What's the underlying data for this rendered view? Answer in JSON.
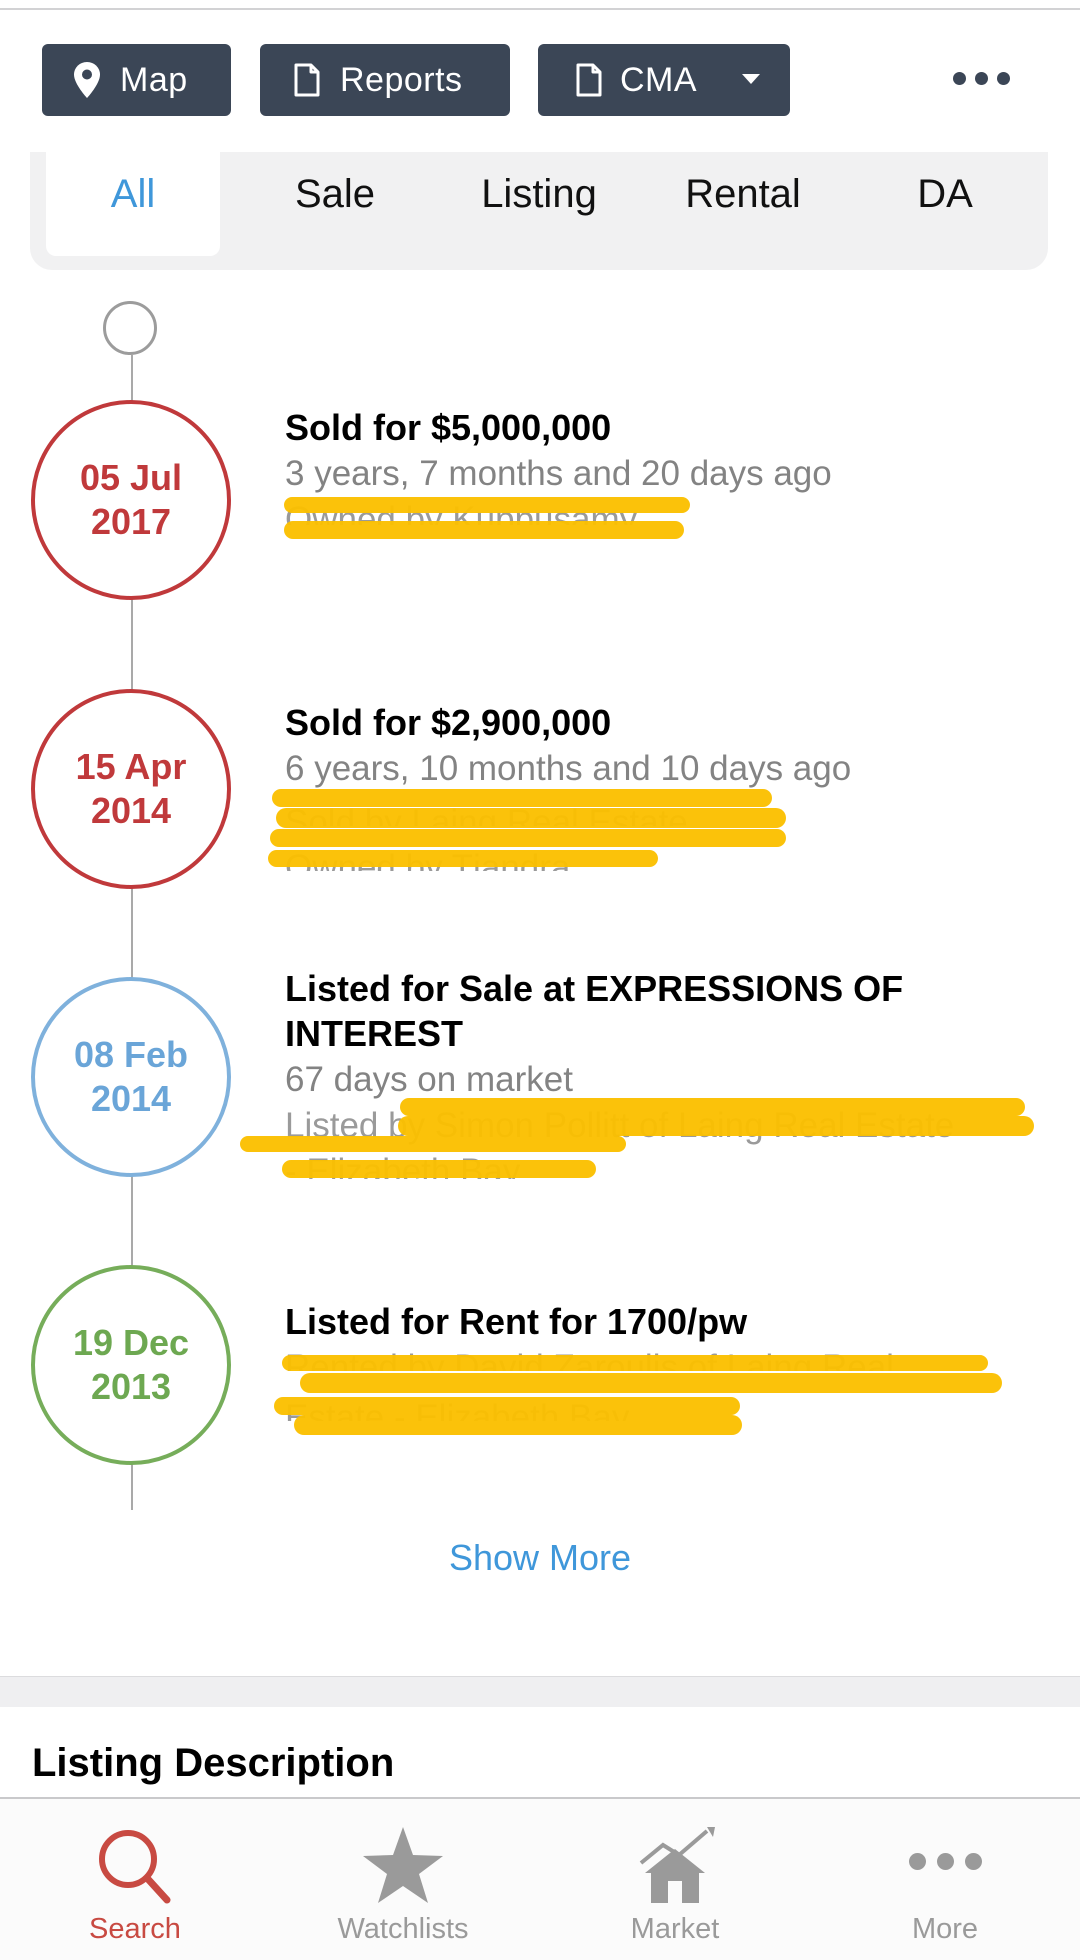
{
  "toolbar": {
    "map_label": "Map",
    "reports_label": "Reports",
    "cma_label": "CMA"
  },
  "filters": {
    "active": "All",
    "items": [
      "All",
      "Sale",
      "Listing",
      "Rental",
      "DA"
    ]
  },
  "timeline": [
    {
      "day_month": "05 Jul",
      "year": "2017",
      "title": "Sold for $5,000,000",
      "subtitle": "3 years, 7 months and 20 days ago",
      "hidden_line": "Owned by Kuppusamy",
      "color": "#c0393b"
    },
    {
      "day_month": "15 Apr",
      "year": "2014",
      "title": "Sold for $2,900,000",
      "subtitle": "6 years, 10 months and 10 days ago",
      "hidden_line": "Sold by Laing Real Estate",
      "hidden_line2": "Owned by Tjandra",
      "color": "#c0393b"
    },
    {
      "day_month": "08 Feb",
      "year": "2014",
      "title": "Listed for Sale at EXPRESSIONS OF INTEREST",
      "subtitle": "67 days on market",
      "hidden_line": "Listed by Simon Pollitt of Laing Real Estate",
      "hidden_line2": "- Elizabeth Bay",
      "color": "#6aa5d8"
    },
    {
      "day_month": "19 Dec",
      "year": "2013",
      "title": "Listed for Rent for 1700/pw",
      "hidden_line": "Rented by David Zaroulis of Laing Real",
      "hidden_line2": "Estate - Elizabeth Bay",
      "color": "#6da851"
    }
  ],
  "show_more_label": "Show More",
  "section_title": "Listing Description",
  "tabbar": {
    "active": "Search",
    "items": [
      {
        "label": "Search",
        "icon": "search-icon"
      },
      {
        "label": "Watchlists",
        "icon": "star-icon"
      },
      {
        "label": "Market",
        "icon": "house-chart-icon"
      },
      {
        "label": "More",
        "icon": "more-dots-icon"
      }
    ]
  }
}
